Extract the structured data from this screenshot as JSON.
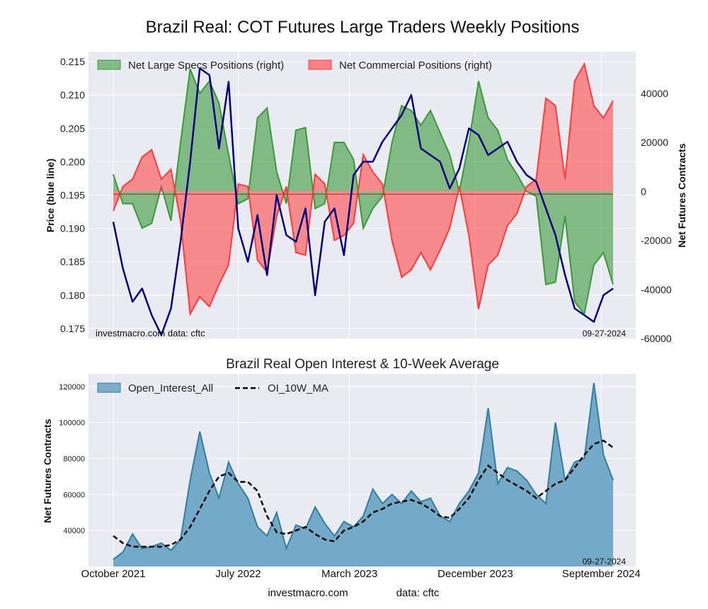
{
  "title": "Brazil Real: COT Futures Large Traders Weekly Positions",
  "subtitle": "Brazil Real Open Interest & 10-Week Average",
  "top_panel": {
    "ylabel_left": "Price (blue line)",
    "ylabel_right": "Net Futures Contracts",
    "left_ticks": [
      "0.175",
      "0.180",
      "0.185",
      "0.190",
      "0.195",
      "0.200",
      "0.205",
      "0.210",
      "0.215"
    ],
    "right_ticks": [
      "-60000",
      "-40000",
      "-20000",
      "0",
      "20000",
      "40000"
    ],
    "watermark": "investmacro.com   data: cftc",
    "date_note": "09-27-2024",
    "legend": [
      "Net Large Specs Positions (right)",
      "Net Commercial Positions (right)"
    ]
  },
  "bottom_panel": {
    "ylabel": "Net Futures Contracts",
    "y_ticks": [
      "40000",
      "60000",
      "80000",
      "100000",
      "120000"
    ],
    "date_note": "09-27-2024",
    "legend": [
      "Open_Interest_All",
      "OI_10W_MA"
    ]
  },
  "x_ticks": [
    "October 2021",
    "July 2022",
    "March 2023",
    "December 2023",
    "September 2024"
  ],
  "footer": {
    "source": "investmacro.com",
    "data": "data: cftc"
  },
  "colors": {
    "specs_fill": "#3a9a3a",
    "commercial_fill": "#ff3b3b",
    "price_line": "#000080",
    "oi_fill": "#5f9ec0",
    "oi_line": "#2e7ea6",
    "ma_line": "#000000",
    "plot_bg": "#eaeaf2"
  },
  "chart_data": [
    {
      "type": "area",
      "title": "Brazil Real: COT Futures Large Traders Weekly Positions",
      "ylabel": "Net Futures Contracts",
      "ylim": [
        -60000,
        57000
      ],
      "x": [
        "2021-10-01",
        "2021-10-22",
        "2021-11-12",
        "2021-12-03",
        "2021-12-24",
        "2022-01-14",
        "2022-02-04",
        "2022-02-25",
        "2022-03-18",
        "2022-04-08",
        "2022-04-29",
        "2022-05-20",
        "2022-06-10",
        "2022-07-01",
        "2022-07-22",
        "2022-08-12",
        "2022-09-02",
        "2022-09-23",
        "2022-10-14",
        "2022-11-04",
        "2022-11-25",
        "2022-12-16",
        "2023-01-06",
        "2023-01-27",
        "2023-02-17",
        "2023-03-10",
        "2023-03-31",
        "2023-04-21",
        "2023-05-12",
        "2023-06-02",
        "2023-06-23",
        "2023-07-14",
        "2023-08-04",
        "2023-08-25",
        "2023-09-15",
        "2023-10-06",
        "2023-10-27",
        "2023-11-17",
        "2023-12-08",
        "2023-12-29",
        "2024-01-19",
        "2024-02-09",
        "2024-03-01",
        "2024-03-22",
        "2024-04-12",
        "2024-05-03",
        "2024-05-24",
        "2024-06-14",
        "2024-07-05",
        "2024-07-26",
        "2024-08-16",
        "2024-09-06",
        "2024-09-27"
      ],
      "series": [
        {
          "name": "Net Large Specs Positions (right)",
          "values": [
            7000,
            -5000,
            -5000,
            -15000,
            -13000,
            2000,
            -12000,
            20000,
            50000,
            40000,
            45000,
            36000,
            15000,
            -5000,
            -3000,
            30000,
            34000,
            8000,
            -5000,
            25000,
            26000,
            -7000,
            -5000,
            20000,
            20000,
            13000,
            -15000,
            -7000,
            -2000,
            20000,
            35000,
            33000,
            27000,
            33000,
            24000,
            15000,
            0,
            20000,
            45000,
            30000,
            25000,
            13000,
            7000,
            0,
            -2000,
            -38000,
            -37000,
            -10000,
            -45000,
            -50000,
            -30000,
            -25000,
            -38000
          ]
        },
        {
          "name": "Net Commercial Positions (right)",
          "values": [
            -8000,
            2000,
            5000,
            14000,
            17000,
            5000,
            9000,
            -12000,
            -50000,
            -43000,
            -47000,
            -38000,
            -30000,
            3000,
            2000,
            -28000,
            -33000,
            -10000,
            2000,
            -25000,
            -26000,
            7000,
            3000,
            -20000,
            -18000,
            -13000,
            15000,
            8000,
            3000,
            -20000,
            -35000,
            -32000,
            -25000,
            -32000,
            -24000,
            -15000,
            2000,
            -18000,
            -48000,
            -30000,
            -26000,
            -14000,
            -9000,
            2000,
            5000,
            38000,
            35000,
            5000,
            45000,
            52000,
            35000,
            30000,
            37000
          ]
        }
      ]
    },
    {
      "type": "line",
      "ylabel": "Price (blue line)",
      "ylim": [
        0.1735,
        0.2165
      ],
      "x": [
        "2021-10-01",
        "2021-10-22",
        "2021-11-12",
        "2021-12-03",
        "2021-12-24",
        "2022-01-14",
        "2022-02-04",
        "2022-02-25",
        "2022-03-18",
        "2022-04-08",
        "2022-04-29",
        "2022-05-20",
        "2022-06-10",
        "2022-07-01",
        "2022-07-22",
        "2022-08-12",
        "2022-09-02",
        "2022-09-23",
        "2022-10-14",
        "2022-11-04",
        "2022-11-25",
        "2022-12-16",
        "2023-01-06",
        "2023-01-27",
        "2023-02-17",
        "2023-03-10",
        "2023-03-31",
        "2023-04-21",
        "2023-05-12",
        "2023-06-02",
        "2023-06-23",
        "2023-07-14",
        "2023-08-04",
        "2023-08-25",
        "2023-09-15",
        "2023-10-06",
        "2023-10-27",
        "2023-11-17",
        "2023-12-08",
        "2023-12-29",
        "2024-01-19",
        "2024-02-09",
        "2024-03-01",
        "2024-03-22",
        "2024-04-12",
        "2024-05-03",
        "2024-05-24",
        "2024-06-14",
        "2024-07-05",
        "2024-07-26",
        "2024-08-16",
        "2024-09-06",
        "2024-09-27"
      ],
      "series": [
        {
          "name": "Price",
          "values": [
            0.191,
            0.184,
            0.179,
            0.181,
            0.177,
            0.174,
            0.178,
            0.188,
            0.2,
            0.214,
            0.213,
            0.202,
            0.212,
            0.19,
            0.185,
            0.192,
            0.183,
            0.195,
            0.189,
            0.188,
            0.193,
            0.18,
            0.191,
            0.193,
            0.186,
            0.198,
            0.2,
            0.2,
            0.203,
            0.205,
            0.207,
            0.21,
            0.202,
            0.201,
            0.2,
            0.196,
            0.199,
            0.205,
            0.204,
            0.201,
            0.202,
            0.203,
            0.2,
            0.198,
            0.197,
            0.193,
            0.189,
            0.183,
            0.178,
            0.177,
            0.176,
            0.18,
            0.181
          ]
        }
      ]
    },
    {
      "type": "area",
      "title": "Brazil Real Open Interest & 10-Week Average",
      "ylabel": "Net Futures Contracts",
      "ylim": [
        20000,
        127000
      ],
      "x": [
        "2021-10-01",
        "2021-10-22",
        "2021-11-12",
        "2021-12-03",
        "2021-12-24",
        "2022-01-14",
        "2022-02-04",
        "2022-02-25",
        "2022-03-18",
        "2022-04-08",
        "2022-04-29",
        "2022-05-20",
        "2022-06-10",
        "2022-07-01",
        "2022-07-22",
        "2022-08-12",
        "2022-09-02",
        "2022-09-23",
        "2022-10-14",
        "2022-11-04",
        "2022-11-25",
        "2022-12-16",
        "2023-01-06",
        "2023-01-27",
        "2023-02-17",
        "2023-03-10",
        "2023-03-31",
        "2023-04-21",
        "2023-05-12",
        "2023-06-02",
        "2023-06-23",
        "2023-07-14",
        "2023-08-04",
        "2023-08-25",
        "2023-09-15",
        "2023-10-06",
        "2023-10-27",
        "2023-11-17",
        "2023-12-08",
        "2023-12-29",
        "2024-01-19",
        "2024-02-09",
        "2024-03-01",
        "2024-03-22",
        "2024-04-12",
        "2024-05-03",
        "2024-05-24",
        "2024-06-14",
        "2024-07-05",
        "2024-07-26",
        "2024-08-16",
        "2024-09-06",
        "2024-09-27"
      ],
      "series": [
        {
          "name": "Open_Interest_All",
          "values": [
            24000,
            28000,
            38000,
            30000,
            31000,
            33000,
            29000,
            35000,
            68000,
            95000,
            72000,
            58000,
            78000,
            66000,
            58000,
            42000,
            37000,
            50000,
            30000,
            43000,
            41000,
            53000,
            44000,
            37000,
            45000,
            42000,
            48000,
            63000,
            55000,
            60000,
            55000,
            62000,
            56000,
            58000,
            48000,
            45000,
            55000,
            62000,
            72000,
            108000,
            66000,
            75000,
            73000,
            68000,
            60000,
            55000,
            100000,
            68000,
            78000,
            80000,
            122000,
            82000,
            68000
          ]
        },
        {
          "name": "OI_10W_MA",
          "values": [
            37000,
            33000,
            31000,
            31000,
            31000,
            31000,
            32000,
            35000,
            42000,
            52000,
            62000,
            70000,
            72000,
            67000,
            67000,
            62000,
            48000,
            39000,
            38000,
            40000,
            42000,
            38000,
            35000,
            34000,
            40000,
            42000,
            45000,
            50000,
            52000,
            55000,
            56000,
            57000,
            55000,
            52000,
            48000,
            47000,
            52000,
            58000,
            68000,
            76000,
            72000,
            68000,
            65000,
            62000,
            58000,
            62000,
            66000,
            68000,
            75000,
            82000,
            88000,
            90000,
            86000
          ]
        }
      ]
    }
  ]
}
